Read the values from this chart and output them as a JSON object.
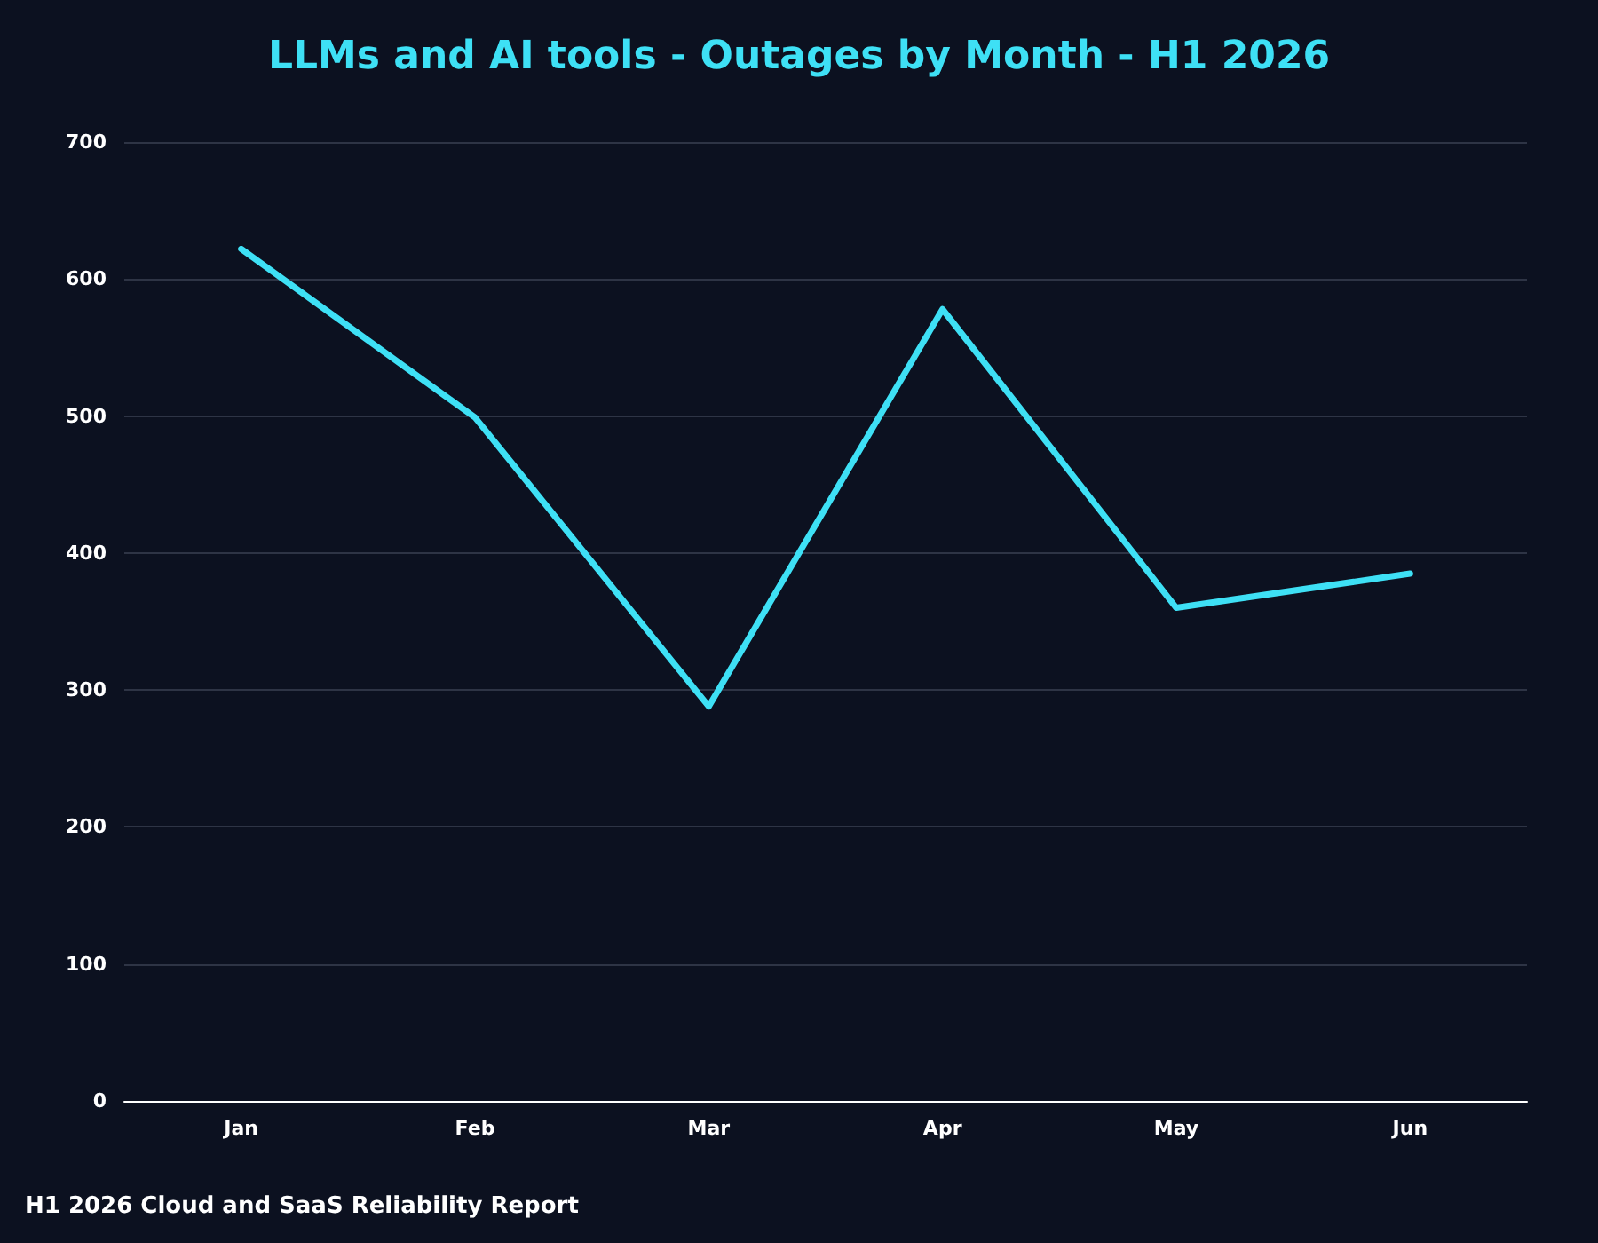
{
  "chart_data": {
    "type": "line",
    "title": "LLMs and AI tools - Outages by Month - H1 2026",
    "categories": [
      "Jan",
      "Feb",
      "Mar",
      "Apr",
      "May",
      "Jun"
    ],
    "series": [
      {
        "color": "#3ee0f5",
        "values": [
          622,
          499,
          288,
          578,
          360,
          385
        ]
      }
    ],
    "ylim": [
      0,
      700
    ],
    "yticks": [
      0,
      100,
      200,
      300,
      400,
      500,
      600,
      700
    ],
    "grid": "y",
    "marker": "none",
    "line_style": "solid",
    "annotations": [
      "H1 2026 Cloud and SaaS Reliability Report"
    ]
  }
}
